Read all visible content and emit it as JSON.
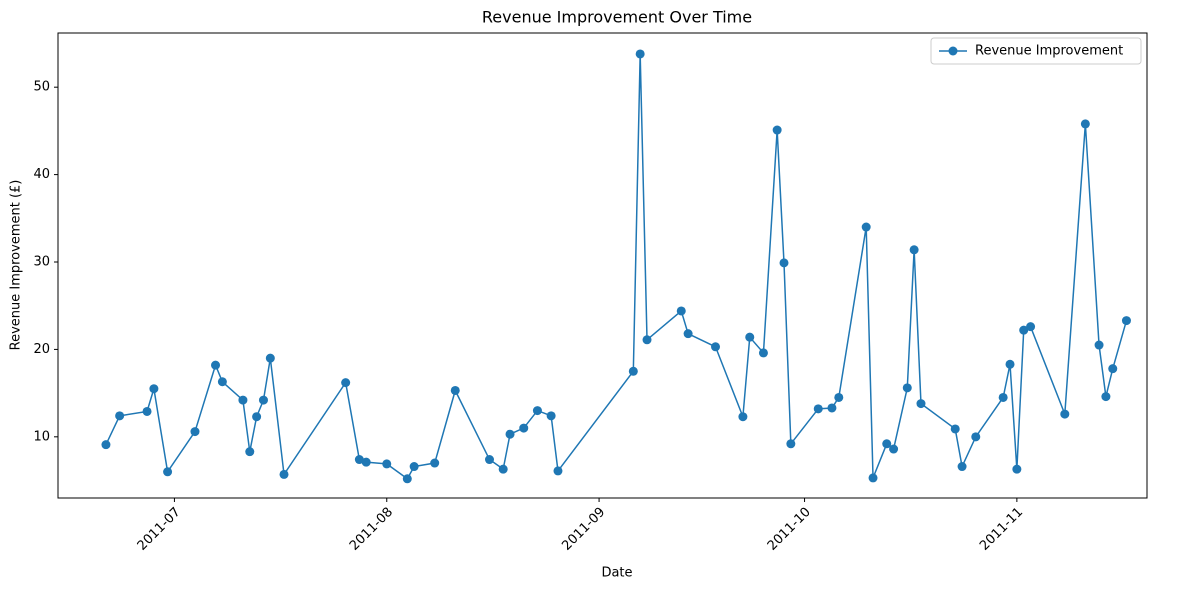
{
  "chart_data": {
    "type": "line",
    "title": "Revenue Improvement Over Time",
    "x_label": "Date",
    "y_label": "Revenue Improvement (£)",
    "x": [
      "2011-06-21",
      "2011-06-23",
      "2011-06-27",
      "2011-06-28",
      "2011-06-30",
      "2011-07-04",
      "2011-07-07",
      "2011-07-08",
      "2011-07-11",
      "2011-07-12",
      "2011-07-13",
      "2011-07-14",
      "2011-07-15",
      "2011-07-17",
      "2011-07-26",
      "2011-07-28",
      "2011-07-29",
      "2011-08-01",
      "2011-08-04",
      "2011-08-05",
      "2011-08-08",
      "2011-08-11",
      "2011-08-16",
      "2011-08-18",
      "2011-08-19",
      "2011-08-21",
      "2011-08-23",
      "2011-08-25",
      "2011-08-26",
      "2011-09-06",
      "2011-09-07",
      "2011-09-08",
      "2011-09-13",
      "2011-09-14",
      "2011-09-18",
      "2011-09-22",
      "2011-09-23",
      "2011-09-25",
      "2011-09-27",
      "2011-09-28",
      "2011-09-29",
      "2011-10-03",
      "2011-10-05",
      "2011-10-06",
      "2011-10-10",
      "2011-10-11",
      "2011-10-13",
      "2011-10-14",
      "2011-10-16",
      "2011-10-17",
      "2011-10-18",
      "2011-10-23",
      "2011-10-24",
      "2011-10-26",
      "2011-10-30",
      "2011-10-31",
      "2011-11-01",
      "2011-11-02",
      "2011-11-03",
      "2011-11-08",
      "2011-11-11",
      "2011-11-13",
      "2011-11-14",
      "2011-11-15",
      "2011-11-17"
    ],
    "series": [
      {
        "name": "Revenue Improvement",
        "color": "#1f77b4",
        "values": [
          9.1,
          12.4,
          12.9,
          15.5,
          6.0,
          10.6,
          18.2,
          16.3,
          14.2,
          8.3,
          12.3,
          14.2,
          19.0,
          5.7,
          16.2,
          7.4,
          7.1,
          6.9,
          5.2,
          6.6,
          7.0,
          15.3,
          7.4,
          6.3,
          10.3,
          11.0,
          13.0,
          12.4,
          6.1,
          17.5,
          53.8,
          21.1,
          24.4,
          21.8,
          20.3,
          12.3,
          21.4,
          19.6,
          45.1,
          29.9,
          9.2,
          13.2,
          13.3,
          14.5,
          34.0,
          5.3,
          9.2,
          8.6,
          15.6,
          31.4,
          13.8,
          10.9,
          6.6,
          10.0,
          14.5,
          18.3,
          6.3,
          22.2,
          22.6,
          12.6,
          45.8,
          20.5,
          14.6,
          17.8,
          23.3
        ]
      }
    ],
    "xlim": [
      "2011-06-14",
      "2011-11-20"
    ],
    "xticks": [
      {
        "value": "2011-07-01",
        "label": "2011-07"
      },
      {
        "value": "2011-08-01",
        "label": "2011-08"
      },
      {
        "value": "2011-09-01",
        "label": "2011-09"
      },
      {
        "value": "2011-10-01",
        "label": "2011-10"
      },
      {
        "value": "2011-11-01",
        "label": "2011-11"
      }
    ],
    "ylim": [
      3.0,
      56.2
    ],
    "yticks": [
      10,
      20,
      30,
      40,
      50
    ],
    "legend": "upper right",
    "grid": false
  }
}
